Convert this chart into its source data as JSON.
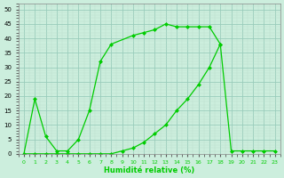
{
  "xlabel": "Humidité relative (%)",
  "xlim": [
    -0.5,
    23.5
  ],
  "ylim": [
    0,
    52
  ],
  "xticks": [
    0,
    1,
    2,
    3,
    4,
    5,
    6,
    7,
    8,
    9,
    10,
    11,
    12,
    13,
    14,
    15,
    16,
    17,
    18,
    19,
    20,
    21,
    22,
    23
  ],
  "yticks": [
    0,
    5,
    10,
    15,
    20,
    25,
    30,
    35,
    40,
    45,
    50
  ],
  "line_color": "#00cc00",
  "bg_color": "#cceedd",
  "grid_major_color": "#99ccbb",
  "grid_minor_color": "#bbddcc",
  "upper_curve_x": [
    0,
    1,
    2,
    3,
    4,
    5,
    6,
    7,
    8,
    10,
    11,
    12,
    13,
    14,
    15,
    16,
    17,
    18
  ],
  "upper_curve_y": [
    0,
    19,
    6,
    1,
    1,
    5,
    15,
    32,
    38,
    41,
    42,
    43,
    45,
    44,
    44,
    44,
    44,
    38
  ],
  "lower_curve_x": [
    0,
    1,
    2,
    3,
    4,
    5,
    6,
    7,
    8,
    9,
    10,
    11,
    12,
    13,
    14,
    15,
    16,
    17,
    18,
    19,
    20,
    21,
    22,
    23
  ],
  "lower_curve_y": [
    0,
    0,
    0,
    0,
    0,
    0,
    0,
    0,
    0,
    1,
    2,
    4,
    7,
    10,
    15,
    19,
    24,
    30,
    38,
    1,
    1,
    1,
    1,
    1
  ]
}
